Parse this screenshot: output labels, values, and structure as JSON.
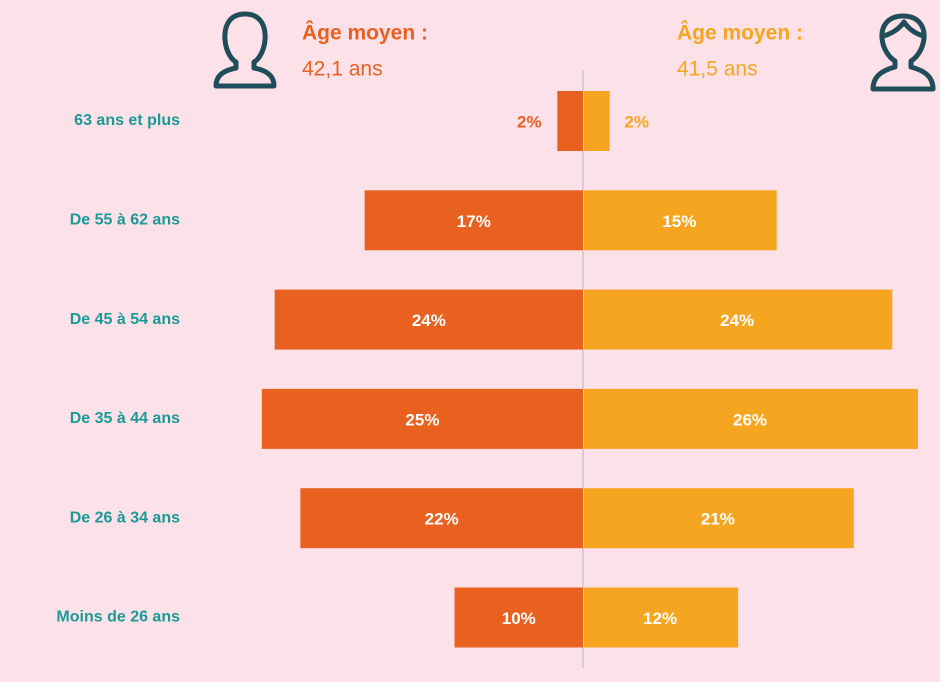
{
  "chart_data": {
    "type": "pyramid",
    "categories": [
      "63 ans et plus",
      "De 55 à 62 ans",
      "De 45 à 54 ans",
      "De 35 à 44 ans",
      "De 26 à 34 ans",
      "Moins de 26 ans"
    ],
    "series": [
      {
        "color": "#e8611f",
        "values": [
          2,
          17,
          24,
          25,
          22,
          10
        ],
        "value_labels": [
          "2%",
          "17%",
          "24%",
          "25%",
          "22%",
          "10%"
        ]
      },
      {
        "color": "#f5a51f",
        "values": [
          2,
          15,
          24,
          26,
          21,
          12
        ],
        "value_labels": [
          "2%",
          "15%",
          "24%",
          "26%",
          "21%",
          "12%"
        ]
      }
    ],
    "annotations": [
      {
        "title": "Âge moyen :",
        "text": "42,1 ans"
      },
      {
        "title": "Âge moyen :",
        "text": "41,5 ans"
      }
    ]
  }
}
